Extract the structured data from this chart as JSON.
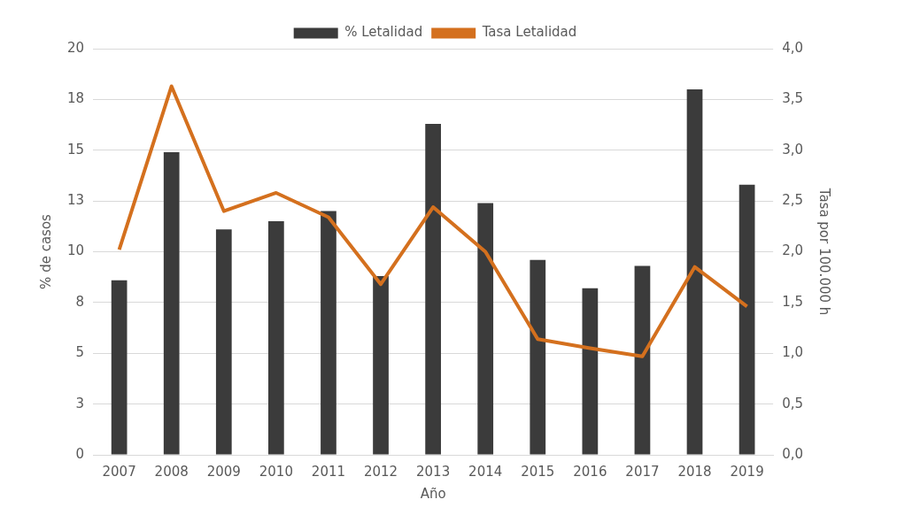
{
  "chart_data": {
    "type": "bar",
    "xlabel": "Año",
    "ylabel": "% de casos",
    "y2label": "Tasa por 100.000 h",
    "categories": [
      "2007",
      "2008",
      "2009",
      "2010",
      "2011",
      "2012",
      "2013",
      "2014",
      "2015",
      "2016",
      "2017",
      "2018",
      "2019"
    ],
    "series": [
      {
        "name": "% Letalidad",
        "color": "#3b3b3b",
        "values": [
          8.6,
          14.9,
          11.1,
          11.5,
          12.0,
          8.8,
          16.3,
          12.4,
          9.6,
          8.2,
          9.3,
          18.0,
          13.3
        ]
      },
      {
        "name": "Tasa Letalidad",
        "type": "line",
        "axis": "y2",
        "color": "#d4701e",
        "values": [
          2.02,
          3.63,
          2.4,
          2.58,
          2.34,
          1.68,
          2.44,
          2.0,
          1.14,
          1.05,
          0.97,
          1.85,
          1.46
        ]
      }
    ],
    "ylim": [
      0,
      20
    ],
    "yticks": [
      0,
      {
        "value": 2.5,
        "label": "3"
      },
      5,
      {
        "value": 7.5,
        "label": "8"
      },
      10,
      {
        "value": 12.5,
        "label": "13"
      },
      15,
      {
        "value": 17.5,
        "label": "18"
      },
      20
    ],
    "y2lim": [
      0,
      4
    ],
    "y2ticks": [
      {
        "value": 0,
        "label": "0,0"
      },
      {
        "value": 0.5,
        "label": "0,5"
      },
      {
        "value": 1,
        "label": "1,0"
      },
      {
        "value": 1.5,
        "label": "1,5"
      },
      {
        "value": 2,
        "label": "2,0"
      },
      {
        "value": 2.5,
        "label": "2,5"
      },
      {
        "value": 3,
        "label": "3,0"
      },
      {
        "value": 3.5,
        "label": "3,5"
      },
      {
        "value": 4,
        "label": "4,0"
      }
    ],
    "grid": "y",
    "legend": "top",
    "marker": "none"
  }
}
